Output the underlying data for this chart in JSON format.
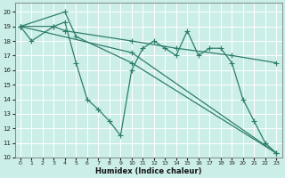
{
  "xlabel": "Humidex (Indice chaleur)",
  "bg_color": "#cceee8",
  "line_color": "#2d7d6b",
  "markersize": 2.5,
  "linewidth": 0.9,
  "xlim": [
    -0.5,
    23.5
  ],
  "ylim": [
    10,
    20.6
  ],
  "yticks": [
    10,
    11,
    12,
    13,
    14,
    15,
    16,
    17,
    18,
    19,
    20
  ],
  "xticks": [
    0,
    1,
    2,
    3,
    4,
    5,
    6,
    7,
    8,
    9,
    10,
    11,
    12,
    13,
    14,
    15,
    16,
    17,
    18,
    19,
    20,
    21,
    22,
    23
  ],
  "series1": [
    [
      0,
      19
    ],
    [
      1,
      18
    ],
    [
      3,
      19
    ],
    [
      4,
      19.3
    ],
    [
      5,
      16.5
    ],
    [
      6,
      14
    ],
    [
      7,
      13.3
    ],
    [
      8,
      12.5
    ],
    [
      9,
      11.5
    ],
    [
      10,
      16
    ],
    [
      11,
      17.5
    ],
    [
      12,
      18
    ],
    [
      13,
      17.5
    ],
    [
      14,
      17
    ],
    [
      15,
      18.7
    ],
    [
      16,
      17
    ],
    [
      17,
      17.5
    ],
    [
      18,
      17.5
    ],
    [
      19,
      16.5
    ],
    [
      20,
      14
    ],
    [
      21,
      12.5
    ],
    [
      22,
      11
    ],
    [
      23,
      10.3
    ]
  ],
  "series2": [
    [
      0,
      19
    ],
    [
      4,
      20
    ],
    [
      5,
      18.3
    ],
    [
      10,
      16.5
    ],
    [
      23,
      10.3
    ]
  ],
  "series3": [
    [
      0,
      19
    ],
    [
      3,
      19
    ],
    [
      4,
      18.7
    ],
    [
      10,
      18
    ],
    [
      14,
      17.5
    ],
    [
      19,
      17
    ],
    [
      23,
      16.5
    ]
  ],
  "series4": [
    [
      0,
      19
    ],
    [
      10,
      17.2
    ],
    [
      23,
      10.3
    ]
  ]
}
